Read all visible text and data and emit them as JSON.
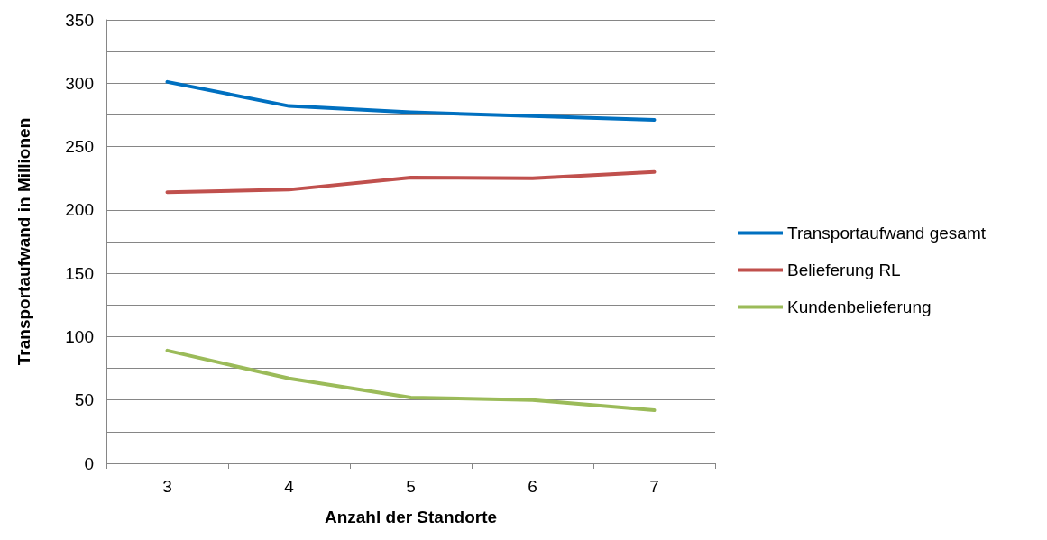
{
  "chart_data": {
    "type": "line",
    "xlabel": "Anzahl der Standorte",
    "ylabel": "Transportaufwand in Millionen",
    "categories": [
      "3",
      "4",
      "5",
      "6",
      "7"
    ],
    "series": [
      {
        "name": "Transportaufwand gesamt",
        "color": "#0070c0",
        "values": [
          301,
          282,
          277,
          274,
          271
        ]
      },
      {
        "name": "Belieferung RL",
        "color": "#c0504d",
        "values": [
          214,
          216,
          225.5,
          225,
          230
        ]
      },
      {
        "name": "Kundenbelieferung",
        "color": "#9bbb59",
        "values": [
          89,
          67,
          52,
          50,
          42
        ]
      }
    ],
    "ylim": [
      0,
      350
    ],
    "yticks": [
      0,
      {
        "value": 25,
        "label": null
      },
      50,
      {
        "value": 75,
        "label": null
      },
      100,
      {
        "value": 125,
        "label": null
      },
      150,
      {
        "value": 175,
        "label": null
      },
      200,
      {
        "value": 225,
        "label": null
      },
      250,
      {
        "value": 275,
        "label": null
      },
      300,
      {
        "value": 325,
        "label": null
      },
      350
    ],
    "grid": "y",
    "legend": "right",
    "marker": "none",
    "line_style": "solid"
  }
}
